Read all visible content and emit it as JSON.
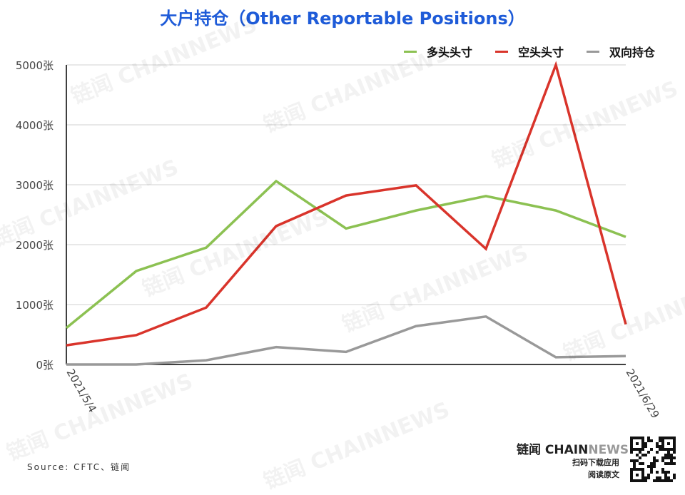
{
  "title": "大户持仓（Other Reportable Positions）",
  "chart_data": {
    "type": "line",
    "title": "大户持仓（Other Reportable Positions）",
    "x": [
      "2021/5/4",
      "2021/5/11",
      "2021/5/18",
      "2021/5/25",
      "2021/6/1",
      "2021/6/8",
      "2021/6/15",
      "2021/6/22",
      "2021/6/29"
    ],
    "x_tick_labels": [
      "2021/5/4",
      "2021/6/29"
    ],
    "y_ticks": [
      "0张",
      "1000张",
      "2000张",
      "3000张",
      "4000张",
      "5000张"
    ],
    "y_tick_values": [
      0,
      1000,
      2000,
      3000,
      4000,
      5000
    ],
    "ylim": [
      0,
      5000
    ],
    "grid": true,
    "legend_position": "top-right",
    "series": [
      {
        "name": "多头头寸",
        "color": "#8cc152",
        "values": [
          610,
          1560,
          1950,
          3060,
          2270,
          2570,
          2810,
          2570,
          2130
        ]
      },
      {
        "name": "空头头寸",
        "color": "#d9342b",
        "values": [
          320,
          490,
          950,
          2310,
          2820,
          2990,
          1930,
          5000,
          670
        ]
      },
      {
        "name": "双向持仓",
        "color": "#999999",
        "values": [
          0,
          0,
          70,
          290,
          210,
          640,
          800,
          120,
          140
        ]
      }
    ]
  },
  "source": "Source: CFTC、链闻",
  "brand": {
    "cn": "链闻 ",
    "chain": "CHAIN",
    "news": "NEWS",
    "sub1": "扫码下载应用",
    "sub2": "阅读原文"
  },
  "watermark": "链闻 CHAINNEWS"
}
